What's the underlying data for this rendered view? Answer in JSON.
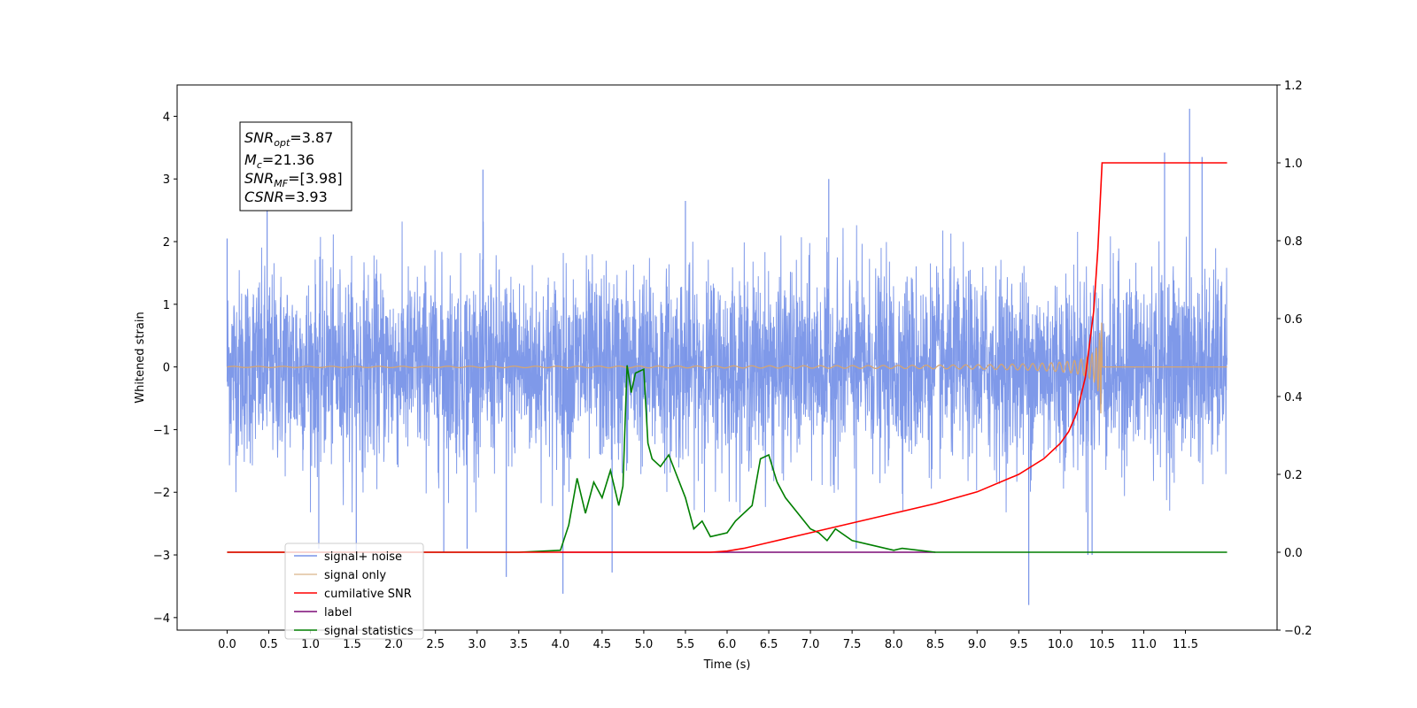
{
  "chart_data": {
    "type": "line",
    "xlabel": "Time (s)",
    "ylabel_left": "Whitened strain",
    "xlim": [
      -0.6,
      12.6
    ],
    "ylim_left": [
      -4.2,
      4.5
    ],
    "ylim_right": [
      -0.2,
      1.2
    ],
    "x_ticks": [
      "0.0",
      "0.5",
      "1.0",
      "1.5",
      "2.0",
      "2.5",
      "3.0",
      "3.5",
      "4.0",
      "4.5",
      "5.0",
      "5.5",
      "6.0",
      "6.5",
      "7.0",
      "7.5",
      "8.0",
      "8.5",
      "9.0",
      "9.5",
      "10.0",
      "10.5",
      "11.0",
      "11.5"
    ],
    "y_ticks_left": [
      "4",
      "3",
      "2",
      "1",
      "0",
      "−1",
      "−2",
      "−3",
      "−4"
    ],
    "y_ticks_right": [
      "1.2",
      "1.0",
      "0.8",
      "0.6",
      "0.4",
      "0.2",
      "0.0",
      "−0.2"
    ],
    "grid": false,
    "legend_position": "lower-left",
    "annotation": {
      "snr_opt": {
        "base": "SNR",
        "sub": "opt",
        "value": "=3.87"
      },
      "mc": {
        "base": "M",
        "sub": "c",
        "value": "=21.36"
      },
      "snr_mf": {
        "base": "SNR",
        "sub": "MF",
        "value": "=[3.98]"
      },
      "csnr": {
        "base": "CSNR",
        "value": "=3.93"
      }
    },
    "series": [
      {
        "name": "signal+ noise",
        "axis": "left",
        "color": "#7893e8",
        "kind": "noise",
        "x_range": [
          0.0,
          12.0
        ],
        "typical_amplitude": [
          -1.6,
          1.6
        ],
        "spikes": [
          {
            "x": 0.0,
            "y": 2.05
          },
          {
            "x": 0.48,
            "y": 2.55
          },
          {
            "x": 1.1,
            "y": -2.9
          },
          {
            "x": 1.55,
            "y": -2.95
          },
          {
            "x": 2.6,
            "y": -2.95
          },
          {
            "x": 2.88,
            "y": -2.9
          },
          {
            "x": 3.07,
            "y": 3.15
          },
          {
            "x": 3.35,
            "y": -3.35
          },
          {
            "x": 4.03,
            "y": -3.62
          },
          {
            "x": 4.62,
            "y": -3.28
          },
          {
            "x": 5.5,
            "y": 2.65
          },
          {
            "x": 7.22,
            "y": 3.0
          },
          {
            "x": 7.55,
            "y": -2.9
          },
          {
            "x": 9.62,
            "y": -3.8
          },
          {
            "x": 10.33,
            "y": -3.0
          },
          {
            "x": 10.38,
            "y": -3.0
          },
          {
            "x": 11.25,
            "y": 3.42
          },
          {
            "x": 11.55,
            "y": 4.12
          },
          {
            "x": 11.7,
            "y": 3.35
          }
        ]
      },
      {
        "name": "signal only",
        "axis": "left",
        "color": "#d4a574",
        "kind": "chirp",
        "x_range": [
          0.0,
          12.0
        ],
        "chirp_end_x": 10.5,
        "peak_amplitude": 0.8
      },
      {
        "name": "cumilative SNR",
        "axis": "right",
        "color": "#ff0000",
        "x": [
          0.0,
          5.8,
          6.0,
          6.2,
          6.5,
          7.0,
          7.5,
          8.0,
          8.5,
          9.0,
          9.5,
          9.8,
          10.0,
          10.1,
          10.2,
          10.3,
          10.4,
          10.45,
          10.5,
          12.0
        ],
        "values": [
          0.0,
          0.0,
          0.003,
          0.01,
          0.025,
          0.05,
          0.075,
          0.1,
          0.125,
          0.155,
          0.2,
          0.24,
          0.28,
          0.31,
          0.36,
          0.45,
          0.62,
          0.78,
          1.0,
          1.0
        ]
      },
      {
        "name": "label",
        "axis": "right",
        "color": "#7b0a76",
        "x": [
          4.0,
          8.5
        ],
        "values": [
          0.0,
          0.0
        ]
      },
      {
        "name": "signal statistics",
        "axis": "right",
        "color": "#007f00",
        "x": [
          0.0,
          3.5,
          4.0,
          4.1,
          4.2,
          4.3,
          4.4,
          4.5,
          4.6,
          4.7,
          4.75,
          4.8,
          4.85,
          4.9,
          5.0,
          5.05,
          5.1,
          5.2,
          5.3,
          5.5,
          5.6,
          5.7,
          5.8,
          6.0,
          6.1,
          6.3,
          6.4,
          6.5,
          6.6,
          6.7,
          7.0,
          7.1,
          7.2,
          7.3,
          7.5,
          7.7,
          8.0,
          8.1,
          8.3,
          8.5,
          12.0
        ],
        "values": [
          0.0,
          0.0,
          0.005,
          0.07,
          0.19,
          0.1,
          0.18,
          0.14,
          0.21,
          0.12,
          0.17,
          0.48,
          0.41,
          0.46,
          0.47,
          0.28,
          0.24,
          0.22,
          0.25,
          0.14,
          0.06,
          0.08,
          0.04,
          0.05,
          0.08,
          0.12,
          0.24,
          0.25,
          0.18,
          0.14,
          0.06,
          0.05,
          0.03,
          0.06,
          0.03,
          0.02,
          0.005,
          0.01,
          0.005,
          0.0,
          0.0
        ]
      }
    ]
  }
}
